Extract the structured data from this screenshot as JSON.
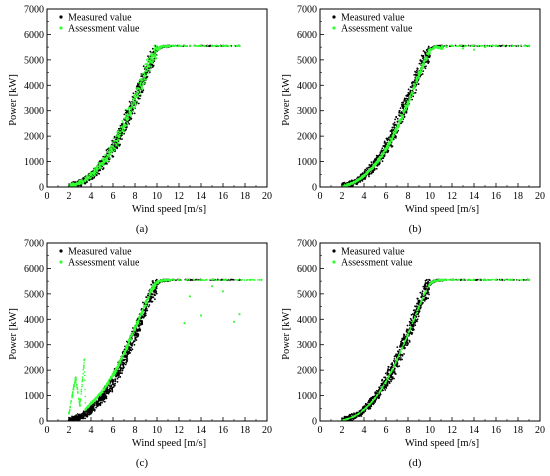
{
  "chart_data": [
    {
      "panel": "(a)",
      "type": "scatter",
      "xlabel": "Wind speed [m/s]",
      "ylabel": "Power [kW]",
      "xlim": [
        0,
        20
      ],
      "ylim": [
        0,
        7000
      ],
      "xticks": [
        0,
        2,
        4,
        6,
        8,
        10,
        12,
        14,
        16,
        18,
        20
      ],
      "yticks": [
        0,
        1000,
        2000,
        3000,
        4000,
        5000,
        6000,
        7000
      ],
      "legend": "top-left",
      "grid": false,
      "series": [
        {
          "name": "Measured value",
          "color": "#000000",
          "marker": "dot",
          "x": [
            2.0,
            2.5,
            3.0,
            3.5,
            4.0,
            4.5,
            5.0,
            5.5,
            6.0,
            6.5,
            7.0,
            7.5,
            8.0,
            8.5,
            9.0,
            9.5,
            10.0,
            10.5,
            11.0,
            11.5,
            12.0,
            13.0,
            14.0,
            15.0,
            16.0,
            17.5
          ],
          "y": [
            30,
            80,
            160,
            280,
            450,
            650,
            900,
            1200,
            1550,
            1950,
            2400,
            2900,
            3400,
            3950,
            4500,
            5000,
            5400,
            5530,
            5550,
            5550,
            5550,
            5550,
            5550,
            5550,
            5550,
            5550
          ]
        },
        {
          "name": "Assessment value",
          "color": "#33ff33",
          "marker": "dot",
          "x": [
            2.0,
            2.5,
            3.0,
            3.5,
            4.0,
            4.5,
            5.0,
            5.5,
            6.0,
            6.5,
            7.0,
            7.5,
            8.0,
            8.5,
            9.0,
            9.5,
            10.0,
            10.5,
            11.0,
            11.5,
            12.0,
            13.0,
            14.0,
            15.0,
            16.0,
            17.5
          ],
          "y": [
            30,
            80,
            170,
            300,
            480,
            680,
            950,
            1250,
            1600,
            2000,
            2450,
            2950,
            3450,
            4000,
            4550,
            5050,
            5420,
            5540,
            5550,
            5550,
            5550,
            5550,
            5550,
            5550,
            5550,
            5550
          ]
        }
      ]
    },
    {
      "panel": "(b)",
      "type": "scatter",
      "xlabel": "Wind speed [m/s]",
      "ylabel": "Power [kW]",
      "xlim": [
        0,
        20
      ],
      "ylim": [
        0,
        7000
      ],
      "xticks": [
        0,
        2,
        4,
        6,
        8,
        10,
        12,
        14,
        16,
        18,
        20
      ],
      "yticks": [
        0,
        1000,
        2000,
        3000,
        4000,
        5000,
        6000,
        7000
      ],
      "legend": "top-left",
      "grid": false,
      "series": [
        {
          "name": "Measured value",
          "color": "#000000",
          "marker": "dot",
          "x": [
            2.0,
            2.5,
            3.0,
            3.5,
            4.0,
            4.5,
            5.0,
            5.5,
            6.0,
            6.5,
            7.0,
            7.5,
            8.0,
            8.5,
            9.0,
            9.5,
            10.0,
            10.5,
            11.0,
            11.5,
            12.0,
            13.0,
            14.0,
            15.0,
            16.0,
            17.5,
            19.0
          ],
          "y": [
            30,
            80,
            160,
            280,
            450,
            650,
            900,
            1200,
            1550,
            1950,
            2400,
            2900,
            3400,
            3950,
            4500,
            5000,
            5400,
            5530,
            5550,
            5550,
            5550,
            5550,
            5550,
            5550,
            5550,
            5550,
            5550
          ]
        },
        {
          "name": "Assessment value",
          "color": "#33ff33",
          "marker": "dot",
          "x": [
            2.0,
            2.5,
            3.0,
            3.5,
            4.0,
            4.5,
            5.0,
            5.5,
            6.0,
            6.5,
            7.0,
            7.5,
            8.0,
            8.5,
            9.0,
            9.5,
            10.0,
            10.5,
            11.0,
            11.5,
            12.0,
            13.0,
            14.0,
            15.0,
            16.0,
            17.5,
            19.0
          ],
          "y": [
            30,
            80,
            160,
            280,
            440,
            640,
            880,
            1170,
            1500,
            1890,
            2330,
            2820,
            3330,
            3870,
            4420,
            4950,
            5380,
            5520,
            5450,
            5500,
            5550,
            5450,
            5400,
            5500,
            5550,
            5550,
            5550
          ]
        }
      ]
    },
    {
      "panel": "(c)",
      "type": "scatter",
      "xlabel": "Wind speed [m/s]",
      "ylabel": "Power [kW]",
      "xlim": [
        0,
        20
      ],
      "ylim": [
        0,
        7000
      ],
      "xticks": [
        0,
        2,
        4,
        6,
        8,
        10,
        12,
        14,
        16,
        18,
        20
      ],
      "yticks": [
        0,
        1000,
        2000,
        3000,
        4000,
        5000,
        6000,
        7000
      ],
      "legend": "top-left",
      "grid": false,
      "series": [
        {
          "name": "Measured value",
          "color": "#000000",
          "marker": "dot",
          "x": [
            2.0,
            2.5,
            3.0,
            3.5,
            4.0,
            4.5,
            5.0,
            5.5,
            6.0,
            6.5,
            7.0,
            7.5,
            8.0,
            8.5,
            9.0,
            9.5,
            10.0,
            10.5,
            11.0,
            11.5,
            12.0,
            13.0,
            14.0,
            15.0,
            16.0,
            17.5
          ],
          "y": [
            30,
            80,
            160,
            280,
            450,
            650,
            900,
            1200,
            1550,
            1950,
            2400,
            2900,
            3400,
            3950,
            4500,
            5000,
            5400,
            5530,
            5550,
            5550,
            5550,
            5550,
            5550,
            5550,
            5550,
            5550
          ]
        },
        {
          "name": "Assessment value",
          "color": "#33ff33",
          "marker": "dot",
          "x": [
            2.0,
            2.3,
            2.6,
            3.0,
            3.4,
            3.5,
            4.0,
            4.5,
            5.0,
            5.5,
            6.0,
            6.5,
            7.0,
            7.5,
            8.0,
            8.5,
            9.0,
            9.5,
            10.0,
            10.5,
            11.0,
            12.0,
            12.5,
            13.0,
            14.0,
            15.0,
            16.0,
            17.0,
            17.5,
            18.5,
            19.5
          ],
          "y": [
            300,
            1000,
            1700,
            600,
            2400,
            450,
            700,
            900,
            1150,
            1450,
            1800,
            2200,
            2650,
            3150,
            3650,
            4150,
            4650,
            5150,
            5450,
            5550,
            5550,
            5550,
            3850,
            4900,
            4150,
            5300,
            5100,
            3900,
            4200,
            5550,
            5550
          ]
        }
      ]
    },
    {
      "panel": "(d)",
      "type": "scatter",
      "xlabel": "Wind speed [m/s]",
      "ylabel": "Power [kW]",
      "xlim": [
        0,
        20
      ],
      "ylim": [
        0,
        7000
      ],
      "xticks": [
        0,
        2,
        4,
        6,
        8,
        10,
        12,
        14,
        16,
        18,
        20
      ],
      "yticks": [
        0,
        1000,
        2000,
        3000,
        4000,
        5000,
        6000,
        7000
      ],
      "legend": "top-left",
      "grid": false,
      "series": [
        {
          "name": "Measured value",
          "color": "#000000",
          "marker": "dot",
          "x": [
            2.0,
            2.5,
            3.0,
            3.5,
            4.0,
            4.5,
            5.0,
            5.5,
            6.0,
            6.5,
            7.0,
            7.5,
            8.0,
            8.5,
            9.0,
            9.5,
            10.0,
            10.5,
            11.0,
            11.5,
            12.0,
            13.0,
            14.0,
            15.0,
            16.0,
            17.5,
            19.0
          ],
          "y": [
            30,
            80,
            160,
            280,
            450,
            650,
            900,
            1200,
            1550,
            1950,
            2400,
            2900,
            3400,
            3950,
            4500,
            5000,
            5400,
            5530,
            5550,
            5550,
            5550,
            5550,
            5550,
            5550,
            5550,
            5550,
            5550
          ]
        },
        {
          "name": "Assessment value",
          "color": "#33ff33",
          "marker": "dot",
          "x": [
            2.0,
            2.5,
            3.0,
            3.5,
            4.0,
            4.5,
            5.0,
            5.5,
            6.0,
            6.5,
            7.0,
            7.5,
            8.0,
            8.5,
            9.0,
            9.5,
            10.0,
            10.5,
            11.0,
            11.5,
            12.0,
            13.0,
            14.0,
            15.0,
            16.0,
            17.5,
            19.0
          ],
          "y": [
            30,
            80,
            160,
            280,
            450,
            650,
            900,
            1200,
            1550,
            1950,
            2400,
            2900,
            3400,
            3950,
            4500,
            5000,
            5400,
            5530,
            5550,
            5550,
            5550,
            5550,
            5550,
            5550,
            5550,
            5550,
            5550
          ]
        }
      ]
    }
  ]
}
